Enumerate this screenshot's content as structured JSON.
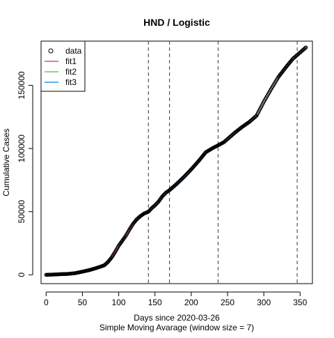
{
  "chart_data": {
    "type": "scatter",
    "title": "HND / Logistic",
    "xlabel": "Days since 2020-03-26",
    "xlabel2": "Simple Moving Avarage (window size = 7)",
    "ylabel": "Cumulative Cases",
    "xlim": [
      -7,
      367
    ],
    "ylim": [
      -7000,
      185000
    ],
    "x_ticks": [
      0,
      50,
      100,
      150,
      200,
      250,
      300,
      350
    ],
    "y_ticks": [
      0,
      50000,
      100000,
      150000
    ],
    "vlines": [
      141,
      170,
      237,
      346
    ],
    "legend_position": "top-left",
    "legend": [
      {
        "label": "data",
        "kind": "circle",
        "color": "#000000"
      },
      {
        "label": "fit1",
        "kind": "line",
        "color": "#DF536B"
      },
      {
        "label": "fit2",
        "kind": "line",
        "color": "#61D04F"
      },
      {
        "label": "fit3",
        "kind": "line",
        "color": "#2297E6"
      }
    ],
    "data_points": [
      [
        0,
        0
      ],
      [
        10,
        200
      ],
      [
        20,
        500
      ],
      [
        30,
        700
      ],
      [
        40,
        1300
      ],
      [
        50,
        2500
      ],
      [
        60,
        3800
      ],
      [
        70,
        5500
      ],
      [
        80,
        7500
      ],
      [
        85,
        10000
      ],
      [
        90,
        13500
      ],
      [
        95,
        18000
      ],
      [
        100,
        23000
      ],
      [
        105,
        27000
      ],
      [
        110,
        31000
      ],
      [
        115,
        36000
      ],
      [
        120,
        40500
      ],
      [
        125,
        44000
      ],
      [
        130,
        46500
      ],
      [
        135,
        48500
      ],
      [
        141,
        50000
      ],
      [
        145,
        52500
      ],
      [
        150,
        55000
      ],
      [
        155,
        58000
      ],
      [
        160,
        62000
      ],
      [
        165,
        65000
      ],
      [
        170,
        67000
      ],
      [
        180,
        72000
      ],
      [
        190,
        77500
      ],
      [
        200,
        83500
      ],
      [
        210,
        90000
      ],
      [
        220,
        97000
      ],
      [
        230,
        100500
      ],
      [
        237,
        102500
      ],
      [
        245,
        105000
      ],
      [
        250,
        107500
      ],
      [
        260,
        112500
      ],
      [
        270,
        117000
      ],
      [
        280,
        121000
      ],
      [
        290,
        126000
      ],
      [
        300,
        137000
      ],
      [
        310,
        147000
      ],
      [
        320,
        156500
      ],
      [
        330,
        164000
      ],
      [
        340,
        171000
      ],
      [
        350,
        176000
      ],
      [
        358,
        180000
      ]
    ],
    "series": [
      {
        "name": "fit1",
        "color": "#DF536B",
        "x": [
          0,
          20,
          40,
          60,
          80,
          90,
          100,
          110,
          120,
          130,
          141
        ],
        "y": [
          0,
          300,
          1000,
          3500,
          7000,
          13000,
          22500,
          31500,
          40500,
          46500,
          50000
        ]
      },
      {
        "name": "fit2",
        "color": "#61D04F",
        "x": [
          141,
          150,
          160,
          170
        ],
        "y": [
          50000,
          55000,
          62000,
          66500
        ]
      },
      {
        "name": "fit3",
        "color": "#2297E6",
        "x": [
          170,
          190,
          210,
          220,
          230,
          237
        ],
        "y": [
          67000,
          77500,
          90000,
          97000,
          100500,
          102500
        ]
      }
    ]
  }
}
